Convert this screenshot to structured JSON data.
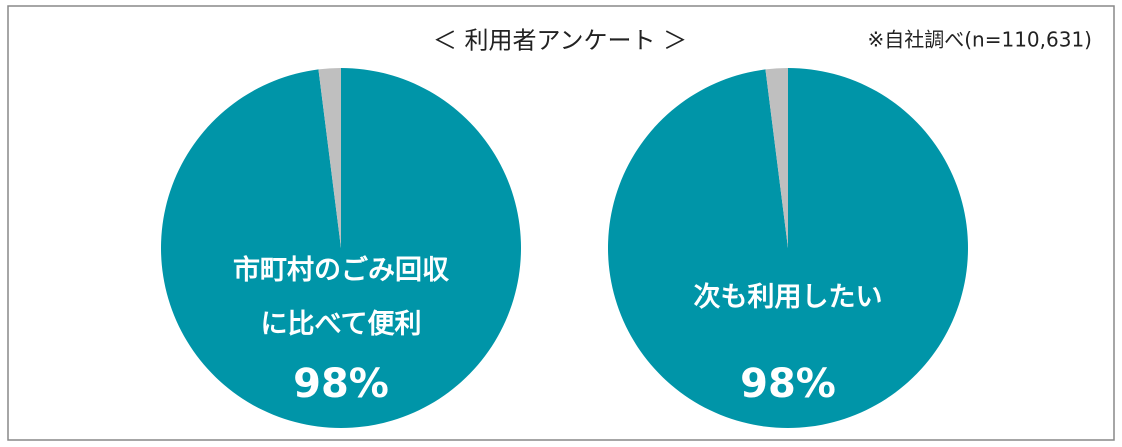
{
  "header": {
    "title": "＜ 利用者アンケート ＞",
    "note": "※自社調べ(n=110,631)"
  },
  "chart_data": [
    {
      "type": "pie",
      "categories": [
        "市町村のごみ回収\nに比べて便利",
        null
      ],
      "values": [
        98,
        2
      ],
      "value_labels": [
        "98%",
        null
      ],
      "colors": [
        "#0095a8",
        "#bfbfbf"
      ]
    },
    {
      "type": "pie",
      "categories": [
        "次も利用したい",
        null
      ],
      "values": [
        98,
        2
      ],
      "value_labels": [
        "98%",
        null
      ],
      "colors": [
        "#0095a8",
        "#bfbfbf"
      ]
    }
  ]
}
